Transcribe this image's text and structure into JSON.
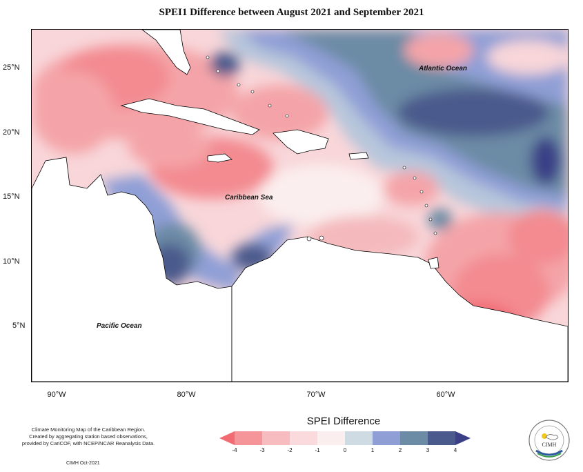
{
  "title": "SPEI1 Difference between August 2021 and September 2021",
  "latitude_labels": [
    "25°N",
    "20°N",
    "15°N",
    "10°N",
    "5°N"
  ],
  "longitude_labels": [
    "90°W",
    "80°W",
    "70°W",
    "60°W"
  ],
  "ocean_labels": {
    "atlantic": "Atlantic Ocean",
    "caribbean": "Caribbean Sea",
    "pacific": "Pacific Ocean"
  },
  "legend": {
    "title": "SPEI Difference",
    "ticks": [
      "-4",
      "-3",
      "-2",
      "-1",
      "0",
      "1",
      "2",
      "3",
      "4"
    ],
    "colors": [
      "#f26b73",
      "#f5959a",
      "#f6bcbf",
      "#fadadc",
      "#fbeeee",
      "#cfdbe2",
      "#8f9fd6",
      "#6c8ba5",
      "#4b5a8c",
      "#3a3f86"
    ]
  },
  "footer": {
    "line1": "Climate Monitoring Map of the Caribbean Region.",
    "line2": "Created by aggregating station based observations,",
    "line3": "provided by CariCOF, with NCEP/NCAR Reanalysis Data.",
    "credit": "CIMH Oct-2021"
  },
  "logo": {
    "text": "CIMH"
  }
}
